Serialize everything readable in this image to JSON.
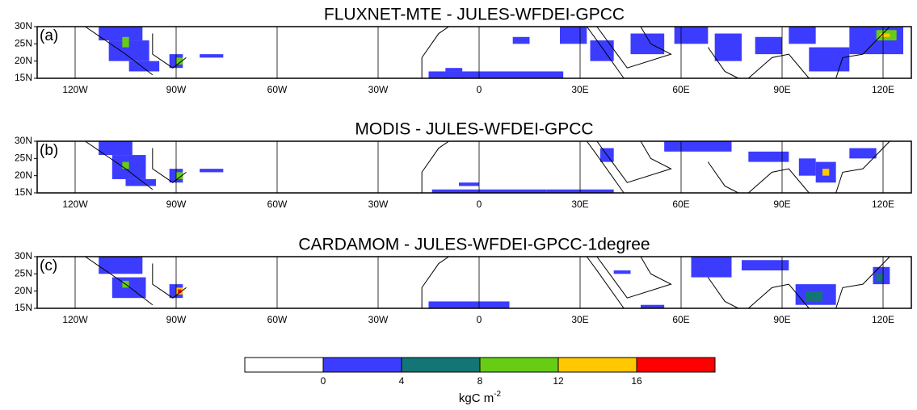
{
  "panels": [
    {
      "title": "FLUXNET-MTE - JULES-WFDEI-GPCC",
      "label": "(a)"
    },
    {
      "title": "MODIS - JULES-WFDEI-GPCC",
      "label": "(b)"
    },
    {
      "title": "CARDAMOM - JULES-WFDEI-GPCC-1degree",
      "label": "(c)"
    }
  ],
  "lon_ticks": [
    {
      "value": -120,
      "label": "120W"
    },
    {
      "value": -90,
      "label": "90W"
    },
    {
      "value": -60,
      "label": "60W"
    },
    {
      "value": -30,
      "label": "30W"
    },
    {
      "value": 0,
      "label": "0"
    },
    {
      "value": 30,
      "label": "30E"
    },
    {
      "value": 60,
      "label": "60E"
    },
    {
      "value": 90,
      "label": "90E"
    },
    {
      "value": 120,
      "label": "120E"
    }
  ],
  "lat_ticks": [
    {
      "value": 30,
      "label": "30N"
    },
    {
      "value": 25,
      "label": "25N"
    },
    {
      "value": 20,
      "label": "20N"
    },
    {
      "value": 15,
      "label": "15N"
    }
  ],
  "colorbar": {
    "levels": [
      0,
      4,
      8,
      12,
      16
    ],
    "colors": [
      "#ffffff",
      "#3c3cff",
      "#137575",
      "#66cc14",
      "#ffc800",
      "#ff0000"
    ],
    "units": {
      "base": "kgC m",
      "exponent": "-2"
    }
  }
}
